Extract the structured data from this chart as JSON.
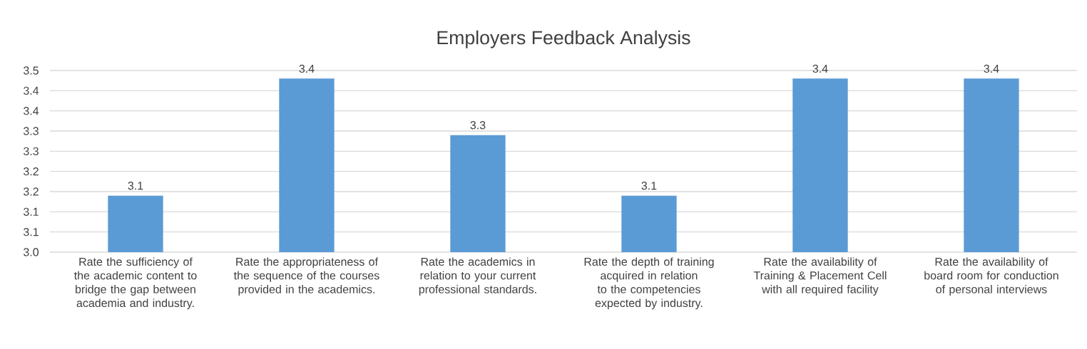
{
  "chart_data": {
    "type": "bar",
    "title": "Employers Feedback Analysis",
    "categories": [
      "Rate the sufficiency of the academic content to bridge the gap between academia and industry.",
      "Rate the appropriateness of the sequence of the courses provided in the academics.",
      "Rate the academics in relation to your current professional standards.",
      "Rate the depth of training acquired in relation to the competencies expected by industry.",
      "Rate the availability of Training & Placement Cell with all required facility",
      "Rate the availability of board room for conduction of personal interviews"
    ],
    "values": [
      3.14,
      3.43,
      3.29,
      3.14,
      3.43,
      3.43
    ],
    "value_labels": [
      "3.1",
      "3.4",
      "3.3",
      "3.1",
      "3.4",
      "3.4"
    ],
    "color": "#5b9bd5",
    "ylim": [
      3.0,
      3.45
    ],
    "yticks": [
      {
        "value": 3.0,
        "label": "3.0"
      },
      {
        "value": 3.05,
        "label": "3.1"
      },
      {
        "value": 3.1,
        "label": "3.1"
      },
      {
        "value": 3.15,
        "label": "3.2"
      },
      {
        "value": 3.2,
        "label": "3.2"
      },
      {
        "value": 3.25,
        "label": "3.3"
      },
      {
        "value": 3.3,
        "label": "3.3"
      },
      {
        "value": 3.35,
        "label": "3.4"
      },
      {
        "value": 3.4,
        "label": "3.4"
      },
      {
        "value": 3.45,
        "label": "3.5"
      }
    ],
    "grid": "y"
  }
}
